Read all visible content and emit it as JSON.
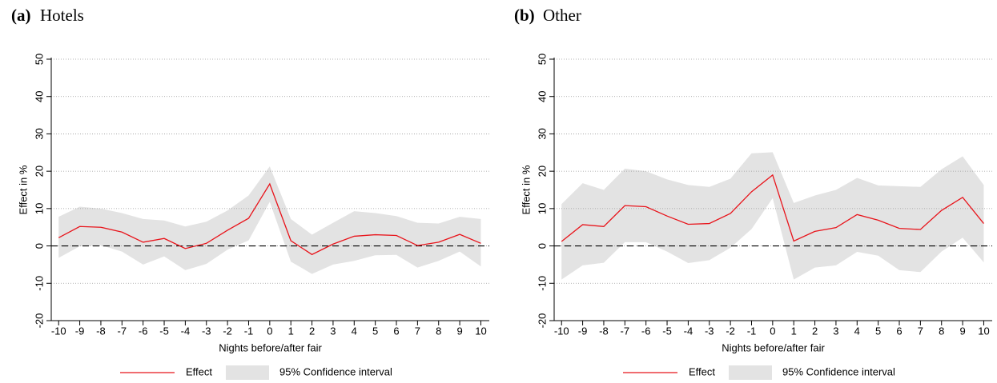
{
  "chart_data": [
    {
      "type": "line",
      "label": "(a)",
      "title": "Hotels",
      "x_label": "Nights before/after fair",
      "y_label": "Effect in %",
      "x": [
        -10,
        -9,
        -8,
        -7,
        -6,
        -5,
        -4,
        -3,
        -2,
        -1,
        0,
        1,
        2,
        3,
        4,
        5,
        6,
        7,
        8,
        9,
        10
      ],
      "series": [
        {
          "name": "Effect",
          "color": "#e8141b",
          "values": [
            2.2,
            5.2,
            5.0,
            3.7,
            1.0,
            2.0,
            -0.7,
            0.7,
            4.2,
            7.4,
            16.6,
            1.4,
            -2.3,
            0.5,
            2.6,
            3.0,
            2.8,
            0.1,
            1.0,
            3.1,
            0.7
          ]
        }
      ],
      "band": {
        "name": "95% Confidence interval",
        "color": "#e3e3e3",
        "upper": [
          7.8,
          10.5,
          10.0,
          8.8,
          7.2,
          6.8,
          5.2,
          6.5,
          9.5,
          13.5,
          21.3,
          7.2,
          3.0,
          6.2,
          9.3,
          8.8,
          8.0,
          6.2,
          6.0,
          7.8,
          7.2
        ],
        "lower": [
          -3.2,
          -0.1,
          0.2,
          -1.5,
          -5.0,
          -2.8,
          -6.5,
          -4.8,
          -1.0,
          1.5,
          11.8,
          -4.2,
          -7.5,
          -5.0,
          -4.0,
          -2.5,
          -2.4,
          -5.8,
          -4.0,
          -1.5,
          -5.5
        ]
      },
      "reference_line": 0,
      "xlim": [
        -10.35,
        10.4
      ],
      "xticks": [
        -10,
        -9,
        -8,
        -7,
        -6,
        -5,
        -4,
        -3,
        -2,
        -1,
        0,
        1,
        2,
        3,
        4,
        5,
        6,
        7,
        8,
        9,
        10
      ],
      "ylim": [
        -20,
        50
      ],
      "yticks": [
        -20,
        -10,
        0,
        10,
        20,
        30,
        40,
        50
      ],
      "grid": true,
      "legend": "bottom"
    },
    {
      "type": "line",
      "label": "(b)",
      "title": "Other",
      "x_label": "Nights before/after fair",
      "y_label": "Effect in %",
      "x": [
        -10,
        -9,
        -8,
        -7,
        -6,
        -5,
        -4,
        -3,
        -2,
        -1,
        0,
        1,
        2,
        3,
        4,
        5,
        6,
        7,
        8,
        9,
        10
      ],
      "series": [
        {
          "name": "Effect",
          "color": "#e8141b",
          "values": [
            1.2,
            5.7,
            5.2,
            10.8,
            10.5,
            8.0,
            5.8,
            6.0,
            8.7,
            14.5,
            19.0,
            1.3,
            3.9,
            4.9,
            8.4,
            6.9,
            4.7,
            4.4,
            9.5,
            13.0,
            6.0
          ]
        }
      ],
      "band": {
        "name": "95% Confidence interval",
        "color": "#e3e3e3",
        "upper": [
          11.2,
          16.8,
          15.0,
          20.7,
          20.0,
          17.8,
          16.3,
          15.8,
          18.0,
          24.8,
          25.1,
          11.5,
          13.5,
          15.0,
          18.2,
          16.2,
          16.0,
          15.8,
          20.5,
          24.0,
          16.3
        ],
        "lower": [
          -9.0,
          -5.2,
          -4.5,
          1.0,
          1.0,
          -1.5,
          -4.6,
          -3.8,
          -0.5,
          4.5,
          12.8,
          -9.0,
          -5.8,
          -5.2,
          -1.6,
          -2.6,
          -6.5,
          -7.0,
          -1.5,
          2.2,
          -4.4
        ]
      },
      "reference_line": 0,
      "xlim": [
        -10.35,
        10.4
      ],
      "xticks": [
        -10,
        -9,
        -8,
        -7,
        -6,
        -5,
        -4,
        -3,
        -2,
        -1,
        0,
        1,
        2,
        3,
        4,
        5,
        6,
        7,
        8,
        9,
        10
      ],
      "ylim": [
        -20,
        50
      ],
      "yticks": [
        -20,
        -10,
        0,
        10,
        20,
        30,
        40,
        50
      ],
      "grid": true,
      "legend": "bottom"
    }
  ]
}
